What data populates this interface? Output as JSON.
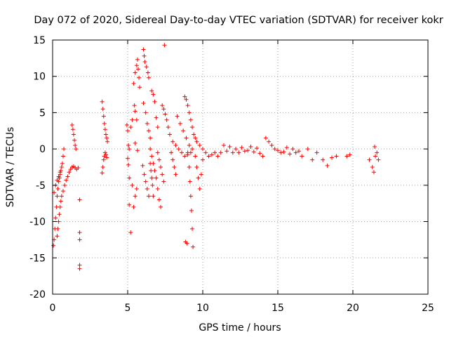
{
  "chart_data": {
    "type": "scatter",
    "title": "Day 072 of 2020, Sidereal Day-to-day VTEC variation (SDTVAR) for receiver kokr",
    "xlabel": "GPS time / hours",
    "ylabel": "SDTVAR / TECUs",
    "xlim": [
      0,
      25
    ],
    "ylim": [
      -20,
      15
    ],
    "xticks": [
      0,
      5,
      10,
      15,
      20,
      25
    ],
    "yticks": [
      -20,
      -15,
      -10,
      -5,
      0,
      5,
      10,
      15
    ],
    "grid": true,
    "marker": "+",
    "color": "#ff0000",
    "series": [
      {
        "name": "SDTVAR",
        "points": [
          [
            0.05,
            -13.3
          ],
          [
            0.1,
            -12.5
          ],
          [
            0.15,
            -11.0
          ],
          [
            0.2,
            -9.5
          ],
          [
            0.25,
            -8.0
          ],
          [
            0.3,
            -6.5
          ],
          [
            0.35,
            -5.5
          ],
          [
            0.4,
            -4.5
          ],
          [
            0.45,
            -4.0
          ],
          [
            0.5,
            -3.5
          ],
          [
            0.55,
            -3.0
          ],
          [
            0.6,
            -2.5
          ],
          [
            0.65,
            -2.0
          ],
          [
            0.7,
            -1.0
          ],
          [
            0.75,
            0.0
          ],
          [
            0.1,
            -6.0
          ],
          [
            0.2,
            -5.0
          ],
          [
            0.3,
            -4.3
          ],
          [
            0.4,
            -3.8
          ],
          [
            0.5,
            -3.2
          ],
          [
            0.3,
            -12.0
          ],
          [
            0.35,
            -11.0
          ],
          [
            0.4,
            -10.0
          ],
          [
            0.45,
            -9.0
          ],
          [
            0.5,
            -8.0
          ],
          [
            0.55,
            -7.2
          ],
          [
            0.6,
            -6.5
          ],
          [
            0.7,
            -5.8
          ],
          [
            0.8,
            -5.0
          ],
          [
            0.9,
            -4.3
          ],
          [
            1.0,
            -3.8
          ],
          [
            1.1,
            -3.2
          ],
          [
            1.2,
            -2.8
          ],
          [
            1.3,
            -2.5
          ],
          [
            1.4,
            -2.4
          ],
          [
            1.5,
            -2.6
          ],
          [
            1.6,
            -2.8
          ],
          [
            1.7,
            -2.6
          ],
          [
            1.3,
            3.3
          ],
          [
            1.35,
            2.7
          ],
          [
            1.4,
            2.0
          ],
          [
            1.45,
            1.2
          ],
          [
            1.5,
            0.5
          ],
          [
            1.55,
            0.0
          ],
          [
            1.8,
            -7.0
          ],
          [
            1.8,
            -11.5
          ],
          [
            1.8,
            -12.5
          ],
          [
            1.8,
            -16.0
          ],
          [
            1.8,
            -16.5
          ],
          [
            3.3,
            6.5
          ],
          [
            3.35,
            5.5
          ],
          [
            3.4,
            4.5
          ],
          [
            3.45,
            3.5
          ],
          [
            3.5,
            2.7
          ],
          [
            3.55,
            2.0
          ],
          [
            3.6,
            1.5
          ],
          [
            3.65,
            1.0
          ],
          [
            3.3,
            -3.3
          ],
          [
            3.35,
            -2.5
          ],
          [
            3.4,
            -1.5
          ],
          [
            3.45,
            -1.0
          ],
          [
            3.5,
            -0.5
          ],
          [
            3.55,
            -0.8
          ],
          [
            3.6,
            -1.2
          ],
          [
            4.95,
            3.3
          ],
          [
            5.0,
            2.5
          ],
          [
            5.05,
            0.5
          ],
          [
            5.1,
            0.0
          ],
          [
            5.0,
            -1.3
          ],
          [
            5.05,
            -2.2
          ],
          [
            5.1,
            -4.0
          ],
          [
            5.1,
            -7.7
          ],
          [
            5.2,
            -11.5
          ],
          [
            5.3,
            -5.0
          ],
          [
            5.4,
            -8.0
          ],
          [
            5.5,
            -6.5
          ],
          [
            5.6,
            -5.5
          ],
          [
            5.2,
            3.0
          ],
          [
            5.3,
            4.0
          ],
          [
            5.45,
            6.0
          ],
          [
            5.5,
            5.2
          ],
          [
            5.6,
            4.0
          ],
          [
            5.5,
            0.8
          ],
          [
            5.65,
            -0.2
          ],
          [
            5.4,
            9.0
          ],
          [
            5.5,
            10.5
          ],
          [
            5.6,
            11.5
          ],
          [
            5.65,
            12.3
          ],
          [
            5.7,
            11.0
          ],
          [
            5.75,
            9.8
          ],
          [
            5.8,
            8.5
          ],
          [
            6.05,
            13.7
          ],
          [
            6.1,
            12.8
          ],
          [
            6.15,
            12.0
          ],
          [
            6.25,
            11.3
          ],
          [
            6.35,
            10.5
          ],
          [
            6.4,
            9.8
          ],
          [
            6.05,
            6.3
          ],
          [
            6.2,
            5.0
          ],
          [
            6.3,
            3.5
          ],
          [
            6.4,
            2.5
          ],
          [
            6.5,
            1.5
          ],
          [
            6.0,
            -2.3
          ],
          [
            6.1,
            -3.5
          ],
          [
            6.2,
            -4.5
          ],
          [
            6.3,
            -5.5
          ],
          [
            6.4,
            -6.5
          ],
          [
            6.5,
            0.0
          ],
          [
            6.6,
            -1.0
          ],
          [
            6.7,
            -2.0
          ],
          [
            6.8,
            -3.0
          ],
          [
            6.9,
            -4.0
          ],
          [
            7.0,
            -5.5
          ],
          [
            7.1,
            -7.0
          ],
          [
            7.2,
            -8.0
          ],
          [
            6.5,
            -2.0
          ],
          [
            6.55,
            -3.0
          ],
          [
            6.6,
            -4.0
          ],
          [
            6.65,
            -5.0
          ],
          [
            6.7,
            -6.5
          ],
          [
            6.6,
            8.0
          ],
          [
            6.7,
            7.5
          ],
          [
            6.8,
            6.5
          ],
          [
            6.9,
            4.3
          ],
          [
            7.0,
            3.0
          ],
          [
            7.0,
            -0.5
          ],
          [
            7.1,
            -1.5
          ],
          [
            7.2,
            -2.5
          ],
          [
            7.3,
            -3.5
          ],
          [
            7.4,
            -4.5
          ],
          [
            7.3,
            6.0
          ],
          [
            7.4,
            5.5
          ],
          [
            7.5,
            4.8
          ],
          [
            7.6,
            4.0
          ],
          [
            7.7,
            3.0
          ],
          [
            7.45,
            14.3
          ],
          [
            7.8,
            2.0
          ],
          [
            8.0,
            1.0
          ],
          [
            8.2,
            0.5
          ],
          [
            8.4,
            0.0
          ],
          [
            8.6,
            -0.5
          ],
          [
            8.8,
            -1.0
          ],
          [
            9.0,
            -0.8
          ],
          [
            9.2,
            -0.5
          ],
          [
            7.9,
            -0.5
          ],
          [
            8.0,
            -1.5
          ],
          [
            8.1,
            -2.5
          ],
          [
            8.2,
            -3.5
          ],
          [
            8.3,
            4.5
          ],
          [
            8.5,
            3.5
          ],
          [
            8.7,
            2.5
          ],
          [
            8.9,
            1.5
          ],
          [
            9.1,
            0.5
          ],
          [
            9.3,
            0.0
          ],
          [
            8.8,
            7.2
          ],
          [
            8.9,
            6.8
          ],
          [
            9.0,
            6.0
          ],
          [
            9.1,
            5.0
          ],
          [
            9.2,
            4.0
          ],
          [
            9.3,
            3.0
          ],
          [
            9.4,
            2.0
          ],
          [
            9.5,
            1.5
          ],
          [
            9.6,
            1.0
          ],
          [
            9.8,
            0.5
          ],
          [
            9.0,
            -0.5
          ],
          [
            9.1,
            -2.5
          ],
          [
            9.15,
            -4.5
          ],
          [
            9.2,
            -6.5
          ],
          [
            9.25,
            -8.5
          ],
          [
            9.3,
            -11.0
          ],
          [
            9.35,
            -13.5
          ],
          [
            9.5,
            -1.0
          ],
          [
            9.6,
            -2.5
          ],
          [
            9.7,
            -4.0
          ],
          [
            9.8,
            -5.5
          ],
          [
            9.9,
            -3.5
          ],
          [
            10.0,
            -1.5
          ],
          [
            8.85,
            -12.8
          ],
          [
            8.95,
            -13.0
          ],
          [
            10.0,
            0.0
          ],
          [
            10.2,
            -0.5
          ],
          [
            10.4,
            -1.0
          ],
          [
            10.6,
            -0.8
          ],
          [
            10.8,
            -0.5
          ],
          [
            11.0,
            -1.0
          ],
          [
            11.2,
            -0.5
          ],
          [
            11.4,
            0.5
          ],
          [
            11.6,
            -0.3
          ],
          [
            11.8,
            0.3
          ],
          [
            12.0,
            -0.5
          ],
          [
            12.2,
            0.0
          ],
          [
            12.4,
            -0.5
          ],
          [
            12.6,
            0.2
          ],
          [
            12.8,
            -0.3
          ],
          [
            13.0,
            -0.2
          ],
          [
            13.2,
            0.3
          ],
          [
            13.4,
            -0.4
          ],
          [
            13.6,
            0.1
          ],
          [
            13.8,
            -0.6
          ],
          [
            14.0,
            -1.0
          ],
          [
            14.2,
            1.5
          ],
          [
            14.4,
            1.0
          ],
          [
            14.6,
            0.5
          ],
          [
            14.8,
            0.0
          ],
          [
            15.0,
            -0.2
          ],
          [
            15.2,
            -0.5
          ],
          [
            15.4,
            -0.4
          ],
          [
            15.6,
            0.2
          ],
          [
            15.8,
            -0.7
          ],
          [
            16.0,
            0.0
          ],
          [
            16.2,
            -0.5
          ],
          [
            16.4,
            -0.3
          ],
          [
            16.6,
            -1.0
          ],
          [
            17.0,
            0.0
          ],
          [
            17.3,
            -1.5
          ],
          [
            17.6,
            -0.5
          ],
          [
            18.0,
            -1.5
          ],
          [
            18.3,
            -2.3
          ],
          [
            18.6,
            -1.2
          ],
          [
            18.9,
            -1.0
          ],
          [
            19.6,
            -1.0
          ],
          [
            19.8,
            -0.8
          ],
          [
            21.1,
            -1.5
          ],
          [
            21.3,
            -2.5
          ],
          [
            21.4,
            -3.2
          ],
          [
            21.45,
            0.3
          ],
          [
            21.5,
            -1.0
          ],
          [
            21.6,
            -0.5
          ],
          [
            21.7,
            -1.5
          ]
        ]
      }
    ]
  }
}
